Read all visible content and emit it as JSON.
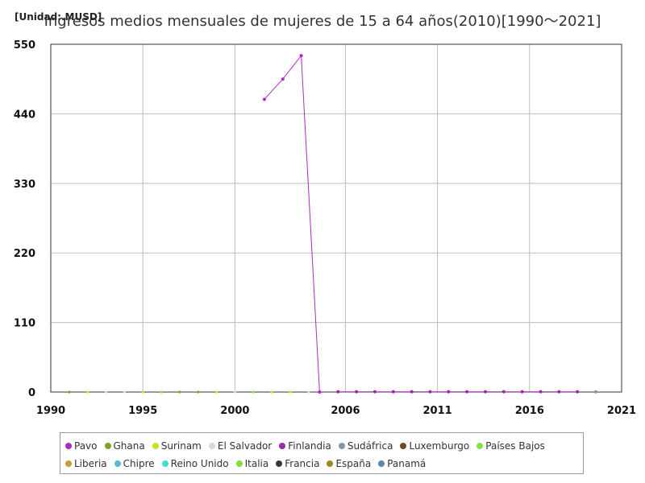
{
  "chart_data": {
    "type": "line",
    "unit_label": "[Unidad:.MUSD]",
    "title": "Ingresos medios mensuales de mujeres de 15 a 64 años(2010)[1990～2021]",
    "xlabel": "",
    "ylabel": "",
    "xlim": [
      1990,
      2021
    ],
    "ylim": [
      0,
      550
    ],
    "x_ticks": [
      1990,
      1995,
      2000,
      2006,
      2011,
      2016,
      2021
    ],
    "y_ticks": [
      0,
      110,
      220,
      330,
      440,
      550
    ],
    "grid": true,
    "legend_position": "bottom",
    "series": [
      {
        "name": "Pavo",
        "color": "#b026c7",
        "points": [
          [
            2001.6,
            463
          ],
          [
            2002.6,
            495
          ],
          [
            2003.6,
            532
          ],
          [
            2004.6,
            0
          ]
        ]
      },
      {
        "name": "Ghana",
        "color": "#7aa71f",
        "points": []
      },
      {
        "name": "Surinam",
        "color": "#c7e31a",
        "points": []
      },
      {
        "name": "El Salvador",
        "color": "#d8d8d8",
        "points": []
      },
      {
        "name": "Finlandia",
        "color": "#9b2aa8",
        "points": [
          [
            2005.6,
            0.4
          ],
          [
            2006.6,
            0.4
          ],
          [
            2007.6,
            0.4
          ],
          [
            2008.6,
            0.4
          ],
          [
            2009.6,
            0.4
          ],
          [
            2010.6,
            0.4
          ],
          [
            2011.6,
            0.4
          ],
          [
            2012.6,
            0.4
          ],
          [
            2013.6,
            0.4
          ],
          [
            2014.6,
            0.4
          ],
          [
            2015.6,
            0.4
          ],
          [
            2016.6,
            0.4
          ],
          [
            2017.6,
            0.4
          ],
          [
            2018.6,
            0.4
          ]
        ]
      },
      {
        "name": "Sudáfrica",
        "color": "#8796a6",
        "points": [
          [
            2019.6,
            0.3
          ]
        ]
      },
      {
        "name": "Luxemburgo",
        "color": "#6b4a2b",
        "points": []
      },
      {
        "name": "Países Bajos",
        "color": "#7ee83a",
        "points": []
      },
      {
        "name": "Liberia",
        "color": "#c79a3a",
        "points": []
      },
      {
        "name": "Chipre",
        "color": "#5ab4dc",
        "points": []
      },
      {
        "name": "Reino Unido",
        "color": "#36e3c4",
        "points": []
      },
      {
        "name": "Italia",
        "color": "#86dc3a",
        "points": []
      },
      {
        "name": "Francia",
        "color": "#2e3e2e",
        "points": []
      },
      {
        "name": "España",
        "color": "#9a8a26",
        "points": []
      },
      {
        "name": "Panamá",
        "color": "#5f86a6",
        "points": []
      }
    ],
    "near_zero_markers": [
      {
        "x": 1991,
        "color": "#9a8a26"
      },
      {
        "x": 1992,
        "color": "#c7e31a"
      },
      {
        "x": 1993,
        "color": "#d8d8d8"
      },
      {
        "x": 1994,
        "color": "#d8d8d8"
      },
      {
        "x": 1995,
        "color": "#c7e31a"
      },
      {
        "x": 1996,
        "color": "#86dc3a"
      },
      {
        "x": 1997,
        "color": "#7aa71f"
      },
      {
        "x": 1998,
        "color": "#7aa71f"
      },
      {
        "x": 1999,
        "color": "#c7e31a"
      },
      {
        "x": 2000,
        "color": "#d8d8d8"
      },
      {
        "x": 2001,
        "color": "#7ee83a"
      },
      {
        "x": 2002,
        "color": "#c7e31a"
      },
      {
        "x": 2003,
        "color": "#c7e31a"
      },
      {
        "x": 2004,
        "color": "#d8d8d8"
      }
    ]
  }
}
